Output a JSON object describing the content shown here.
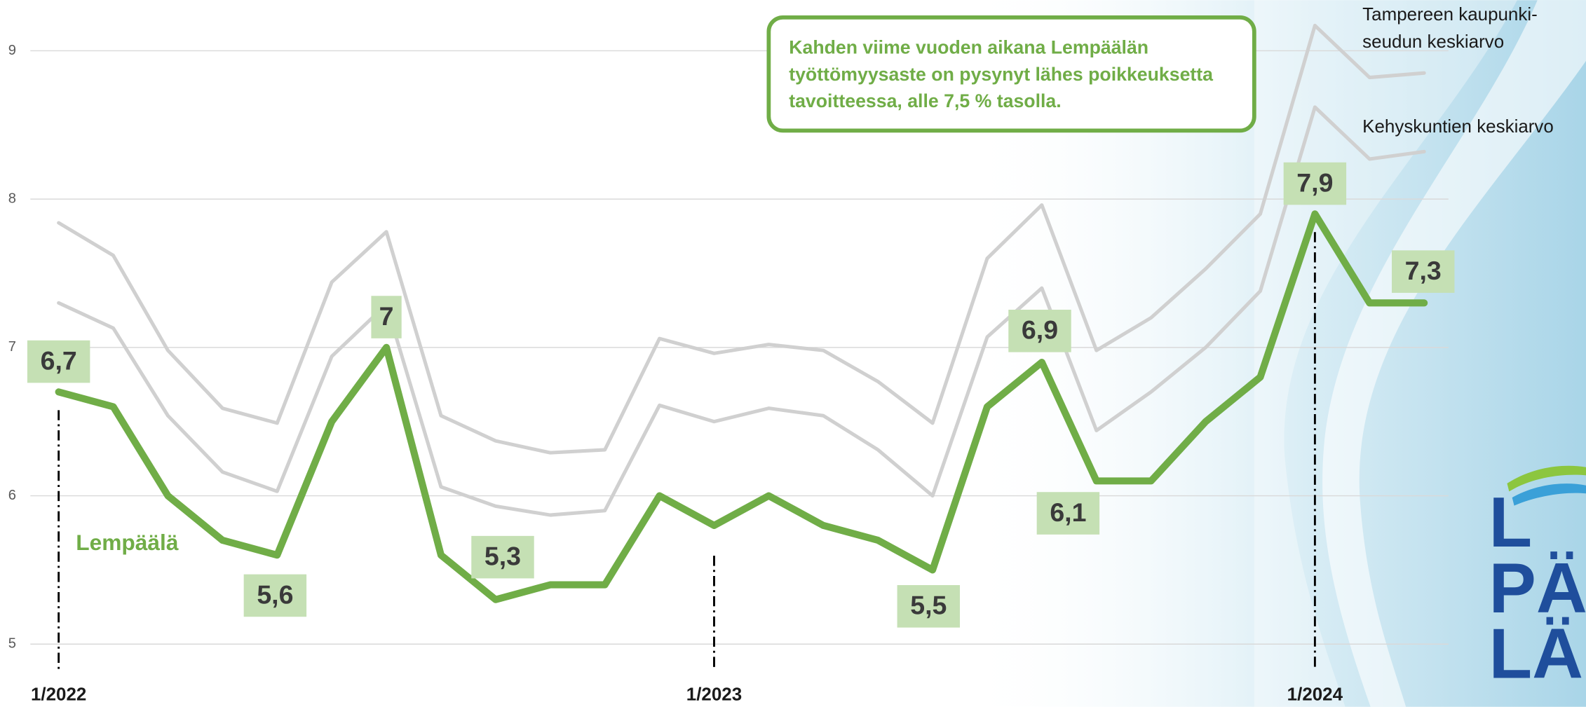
{
  "chart_data": {
    "type": "line",
    "annotation": [
      "Kahden viime vuoden aikana Lempäälän",
      "työttömyysaste on pysynyt lähes poikkeuksetta",
      "tavoitteessa, alle 7,5 % tasolla."
    ],
    "logo": [
      "L",
      "PÄ",
      "LÄ"
    ],
    "categories": [
      "1/2022",
      null,
      null,
      null,
      null,
      null,
      null,
      null,
      null,
      null,
      null,
      null,
      "1/2023",
      null,
      null,
      null,
      null,
      null,
      null,
      null,
      null,
      null,
      null,
      "1/2024",
      null,
      null
    ],
    "ylim": [
      5,
      9
    ],
    "yticks": [
      5,
      6,
      7,
      8,
      9
    ],
    "grid": true,
    "series": [
      {
        "name": "Tampereen kaupunki-\nseudun keskiarvo",
        "color": "#d0d0d0",
        "values": [
          7.84,
          7.62,
          6.98,
          6.59,
          6.49,
          7.44,
          7.78,
          6.54,
          6.37,
          6.29,
          6.31,
          7.06,
          6.96,
          7.02,
          6.98,
          6.77,
          6.49,
          7.6,
          7.96,
          6.98,
          7.2,
          7.53,
          7.9,
          9.17,
          8.82,
          8.85
        ]
      },
      {
        "name": "Kehyskuntien keskiarvo",
        "color": "#d0d0d0",
        "values": [
          7.3,
          7.13,
          6.54,
          6.16,
          6.03,
          6.94,
          7.29,
          6.06,
          5.93,
          5.87,
          5.9,
          6.61,
          6.5,
          6.59,
          6.54,
          6.31,
          6.0,
          7.07,
          7.4,
          6.44,
          6.7,
          7.0,
          7.38,
          8.62,
          8.27,
          8.32
        ]
      },
      {
        "name": "Lempäälä",
        "color": "#70ad47",
        "values": [
          6.7,
          6.6,
          6.0,
          5.7,
          5.6,
          6.5,
          7.0,
          5.6,
          5.3,
          5.4,
          5.4,
          6.0,
          5.8,
          6.0,
          5.8,
          5.7,
          5.5,
          6.6,
          6.9,
          6.1,
          6.1,
          6.5,
          6.8,
          7.9,
          7.3,
          7.3
        ],
        "value_labels": [
          "6,7",
          null,
          null,
          null,
          "5,6",
          null,
          "7",
          null,
          "5,3",
          null,
          null,
          null,
          null,
          null,
          null,
          null,
          "5,5",
          null,
          "6,9",
          "6,1",
          null,
          null,
          null,
          "7,9",
          null,
          "7,3"
        ]
      }
    ]
  }
}
